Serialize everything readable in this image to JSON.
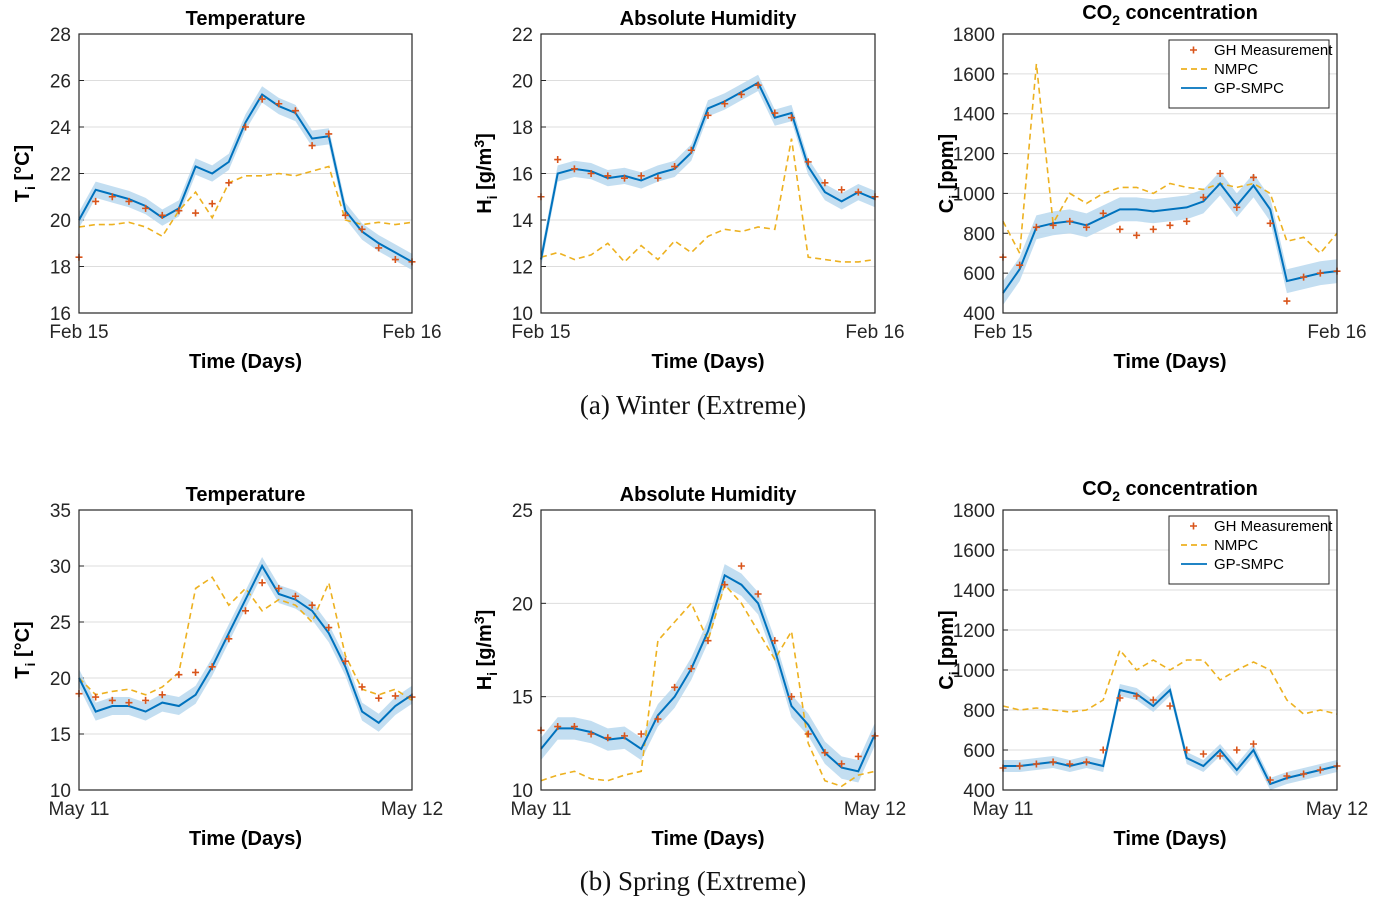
{
  "figure": {
    "caption_a": "(a) Winter (Extreme)",
    "caption_b": "(b) Spring (Extreme)"
  },
  "colors": {
    "measurement": "#d9541a",
    "nmpc": "#edb120",
    "gpsmpc": "#0072bd",
    "band": "#b8d8ef",
    "grid": "#dddddd"
  },
  "chart_data": [
    {
      "type": "line",
      "panel": "winter-temperature",
      "title": "Temperature",
      "xlabel": "Time (Days)",
      "ylabel": "T_i [°C]",
      "x_ticks": [
        "Feb 15",
        "Feb 16"
      ],
      "ylim": [
        16,
        28
      ],
      "yticks": [
        16,
        18,
        20,
        22,
        24,
        26,
        28
      ],
      "grid": "y",
      "legend": null,
      "x_fraction": [
        0,
        0.05,
        0.1,
        0.15,
        0.2,
        0.25,
        0.3,
        0.35,
        0.4,
        0.45,
        0.5,
        0.55,
        0.6,
        0.65,
        0.7,
        0.75,
        0.8,
        0.85,
        0.9,
        0.95,
        1
      ],
      "series": [
        {
          "name": "GH Measurement",
          "style": "markers",
          "values": [
            18.4,
            20.8,
            21.0,
            20.8,
            20.5,
            20.2,
            20.4,
            20.3,
            20.7,
            21.6,
            24.0,
            25.2,
            25.0,
            24.7,
            23.2,
            23.7,
            20.2,
            19.6,
            18.8,
            18.3,
            18.2
          ]
        },
        {
          "name": "NMPC",
          "style": "dashed",
          "values": [
            19.7,
            19.8,
            19.8,
            19.9,
            19.7,
            19.3,
            20.4,
            21.2,
            20.1,
            21.6,
            21.9,
            21.9,
            22.0,
            21.9,
            22.1,
            22.3,
            20.0,
            19.8,
            19.9,
            19.8,
            19.9
          ]
        },
        {
          "name": "GP-SMPC",
          "style": "solid",
          "values": [
            20.0,
            21.3,
            21.1,
            20.9,
            20.6,
            20.1,
            20.5,
            22.3,
            22.0,
            22.5,
            24.2,
            25.4,
            24.9,
            24.6,
            23.5,
            23.6,
            20.4,
            19.5,
            19.0,
            18.6,
            18.2
          ],
          "band": 0.35
        }
      ]
    },
    {
      "type": "line",
      "panel": "winter-humidity",
      "title": "Absolute Humidity",
      "xlabel": "Time (Days)",
      "ylabel": "H_i [g/m^3]",
      "x_ticks": [
        "Feb 15",
        "Feb 16"
      ],
      "ylim": [
        10,
        22
      ],
      "yticks": [
        10,
        12,
        14,
        16,
        18,
        20,
        22
      ],
      "grid": "y",
      "legend": null,
      "x_fraction": [
        0,
        0.05,
        0.1,
        0.15,
        0.2,
        0.25,
        0.3,
        0.35,
        0.4,
        0.45,
        0.5,
        0.55,
        0.6,
        0.65,
        0.7,
        0.75,
        0.8,
        0.85,
        0.9,
        0.95,
        1
      ],
      "series": [
        {
          "name": "GH Measurement",
          "style": "markers",
          "values": [
            15.0,
            16.6,
            16.2,
            16.0,
            15.9,
            15.8,
            15.9,
            15.8,
            16.3,
            17.0,
            18.5,
            19.0,
            19.4,
            19.8,
            18.6,
            18.4,
            16.5,
            15.6,
            15.3,
            15.2,
            15.0
          ]
        },
        {
          "name": "NMPC",
          "style": "dashed",
          "values": [
            12.4,
            12.6,
            12.3,
            12.5,
            13.0,
            12.2,
            12.9,
            12.3,
            13.1,
            12.6,
            13.3,
            13.6,
            13.5,
            13.7,
            13.6,
            17.5,
            12.4,
            12.3,
            12.2,
            12.2,
            12.3
          ]
        },
        {
          "name": "GP-SMPC",
          "style": "solid",
          "values": [
            12.3,
            16.0,
            16.2,
            16.1,
            15.8,
            15.9,
            15.7,
            16.0,
            16.2,
            16.9,
            18.8,
            19.1,
            19.5,
            19.9,
            18.4,
            18.6,
            16.3,
            15.2,
            14.8,
            15.2,
            14.9
          ],
          "band": 0.35
        }
      ]
    },
    {
      "type": "line",
      "panel": "winter-co2",
      "title": "CO2 concentration",
      "xlabel": "Time (Days)",
      "ylabel": "C_i [ppm]",
      "x_ticks": [
        "Feb 15",
        "Feb 16"
      ],
      "ylim": [
        400,
        1800
      ],
      "yticks": [
        400,
        600,
        800,
        1000,
        1200,
        1400,
        1600,
        1800
      ],
      "grid": "y",
      "legend": "top-right",
      "x_fraction": [
        0,
        0.05,
        0.1,
        0.15,
        0.2,
        0.25,
        0.3,
        0.35,
        0.4,
        0.45,
        0.5,
        0.55,
        0.6,
        0.65,
        0.7,
        0.75,
        0.8,
        0.85,
        0.9,
        0.95,
        1
      ],
      "series": [
        {
          "name": "GH Measurement",
          "style": "markers",
          "values": [
            680,
            640,
            830,
            840,
            860,
            830,
            900,
            820,
            790,
            820,
            840,
            860,
            980,
            1100,
            930,
            1080,
            850,
            460,
            580,
            600,
            610
          ]
        },
        {
          "name": "NMPC",
          "style": "dashed",
          "values": [
            860,
            700,
            1650,
            850,
            1000,
            950,
            1000,
            1030,
            1030,
            1000,
            1050,
            1030,
            1020,
            1050,
            1030,
            1050,
            1000,
            760,
            780,
            700,
            800
          ]
        },
        {
          "name": "GP-SMPC",
          "style": "solid",
          "values": [
            500,
            620,
            830,
            850,
            860,
            840,
            880,
            920,
            920,
            910,
            920,
            930,
            960,
            1050,
            940,
            1040,
            920,
            560,
            580,
            600,
            610
          ],
          "band": 60
        }
      ]
    },
    {
      "type": "line",
      "panel": "spring-temperature",
      "title": "Temperature",
      "xlabel": "Time (Days)",
      "ylabel": "T_i [°C]",
      "x_ticks": [
        "May 11",
        "May 12"
      ],
      "ylim": [
        10,
        35
      ],
      "yticks": [
        10,
        15,
        20,
        25,
        30,
        35
      ],
      "grid": "y",
      "legend": null,
      "x_fraction": [
        0,
        0.05,
        0.1,
        0.15,
        0.2,
        0.25,
        0.3,
        0.35,
        0.4,
        0.45,
        0.5,
        0.55,
        0.6,
        0.65,
        0.7,
        0.75,
        0.8,
        0.85,
        0.9,
        0.95,
        1
      ],
      "series": [
        {
          "name": "GH Measurement",
          "style": "markers",
          "values": [
            18.6,
            18.3,
            18.0,
            17.8,
            18.0,
            18.5,
            20.3,
            20.5,
            21.0,
            23.5,
            26.0,
            28.5,
            28.0,
            27.3,
            26.5,
            24.5,
            21.5,
            19.2,
            18.2,
            18.4,
            18.3
          ]
        },
        {
          "name": "NMPC",
          "style": "dashed",
          "values": [
            20.0,
            18.5,
            18.8,
            19.0,
            18.5,
            19.2,
            20.5,
            28.0,
            29.0,
            26.5,
            28.0,
            26.0,
            27.0,
            26.5,
            25.0,
            28.5,
            22.0,
            19.0,
            18.5,
            19.0,
            18.0
          ]
        },
        {
          "name": "GP-SMPC",
          "style": "solid",
          "values": [
            20.0,
            17.0,
            17.5,
            17.5,
            17.0,
            17.8,
            17.5,
            18.5,
            21.0,
            24.0,
            27.0,
            30.0,
            27.5,
            27.0,
            26.0,
            24.0,
            21.0,
            17.0,
            16.0,
            17.5,
            18.5
          ],
          "band": 0.8
        }
      ]
    },
    {
      "type": "line",
      "panel": "spring-humidity",
      "title": "Absolute Humidity",
      "xlabel": "Time (Days)",
      "ylabel": "H_i [g/m^3]",
      "x_ticks": [
        "May 11",
        "May 12"
      ],
      "ylim": [
        10,
        25
      ],
      "yticks": [
        10,
        15,
        20,
        25
      ],
      "grid": "y",
      "legend": null,
      "x_fraction": [
        0,
        0.05,
        0.1,
        0.15,
        0.2,
        0.25,
        0.3,
        0.35,
        0.4,
        0.45,
        0.5,
        0.55,
        0.6,
        0.65,
        0.7,
        0.75,
        0.8,
        0.85,
        0.9,
        0.95,
        1
      ],
      "series": [
        {
          "name": "GH Measurement",
          "style": "markers",
          "values": [
            13.2,
            13.4,
            13.4,
            13.0,
            12.8,
            12.9,
            13.0,
            13.8,
            15.5,
            16.5,
            18.0,
            21.0,
            22.0,
            20.5,
            18.0,
            15.0,
            13.0,
            12.0,
            11.4,
            11.8,
            12.9
          ]
        },
        {
          "name": "NMPC",
          "style": "dashed",
          "values": [
            10.5,
            10.8,
            11.0,
            10.6,
            10.5,
            10.8,
            11.0,
            18.0,
            19.0,
            20.0,
            18.0,
            21.0,
            20.0,
            18.5,
            17.0,
            18.5,
            12.5,
            10.5,
            10.2,
            10.8,
            11.0
          ]
        },
        {
          "name": "GP-SMPC",
          "style": "solid",
          "values": [
            12.2,
            13.3,
            13.3,
            13.1,
            12.7,
            12.8,
            12.2,
            14.0,
            15.0,
            16.5,
            18.5,
            21.5,
            21.0,
            20.0,
            17.5,
            14.5,
            13.5,
            12.0,
            11.2,
            11.0,
            13.0
          ],
          "band": 0.6
        }
      ]
    },
    {
      "type": "line",
      "panel": "spring-co2",
      "title": "CO2 concentration",
      "xlabel": "Time (Days)",
      "ylabel": "C_i [ppm]",
      "x_ticks": [
        "May 11",
        "May 12"
      ],
      "ylim": [
        400,
        1800
      ],
      "yticks": [
        400,
        600,
        800,
        1000,
        1200,
        1400,
        1600,
        1800
      ],
      "grid": "y",
      "legend": "top-right",
      "x_fraction": [
        0,
        0.05,
        0.1,
        0.15,
        0.2,
        0.25,
        0.3,
        0.35,
        0.4,
        0.45,
        0.5,
        0.55,
        0.6,
        0.65,
        0.7,
        0.75,
        0.8,
        0.85,
        0.9,
        0.95,
        1
      ],
      "series": [
        {
          "name": "GH Measurement",
          "style": "markers",
          "values": [
            510,
            520,
            530,
            540,
            530,
            540,
            600,
            860,
            870,
            850,
            820,
            600,
            580,
            570,
            600,
            630,
            450,
            470,
            480,
            500,
            520
          ]
        },
        {
          "name": "NMPC",
          "style": "dashed",
          "values": [
            820,
            800,
            810,
            800,
            790,
            800,
            850,
            1100,
            1000,
            1050,
            1000,
            1050,
            1050,
            950,
            1000,
            1040,
            1000,
            850,
            780,
            800,
            780
          ]
        },
        {
          "name": "GP-SMPC",
          "style": "solid",
          "values": [
            520,
            520,
            530,
            540,
            520,
            540,
            520,
            900,
            880,
            820,
            900,
            560,
            520,
            600,
            500,
            600,
            430,
            460,
            480,
            500,
            520
          ],
          "band": 30
        }
      ]
    }
  ]
}
